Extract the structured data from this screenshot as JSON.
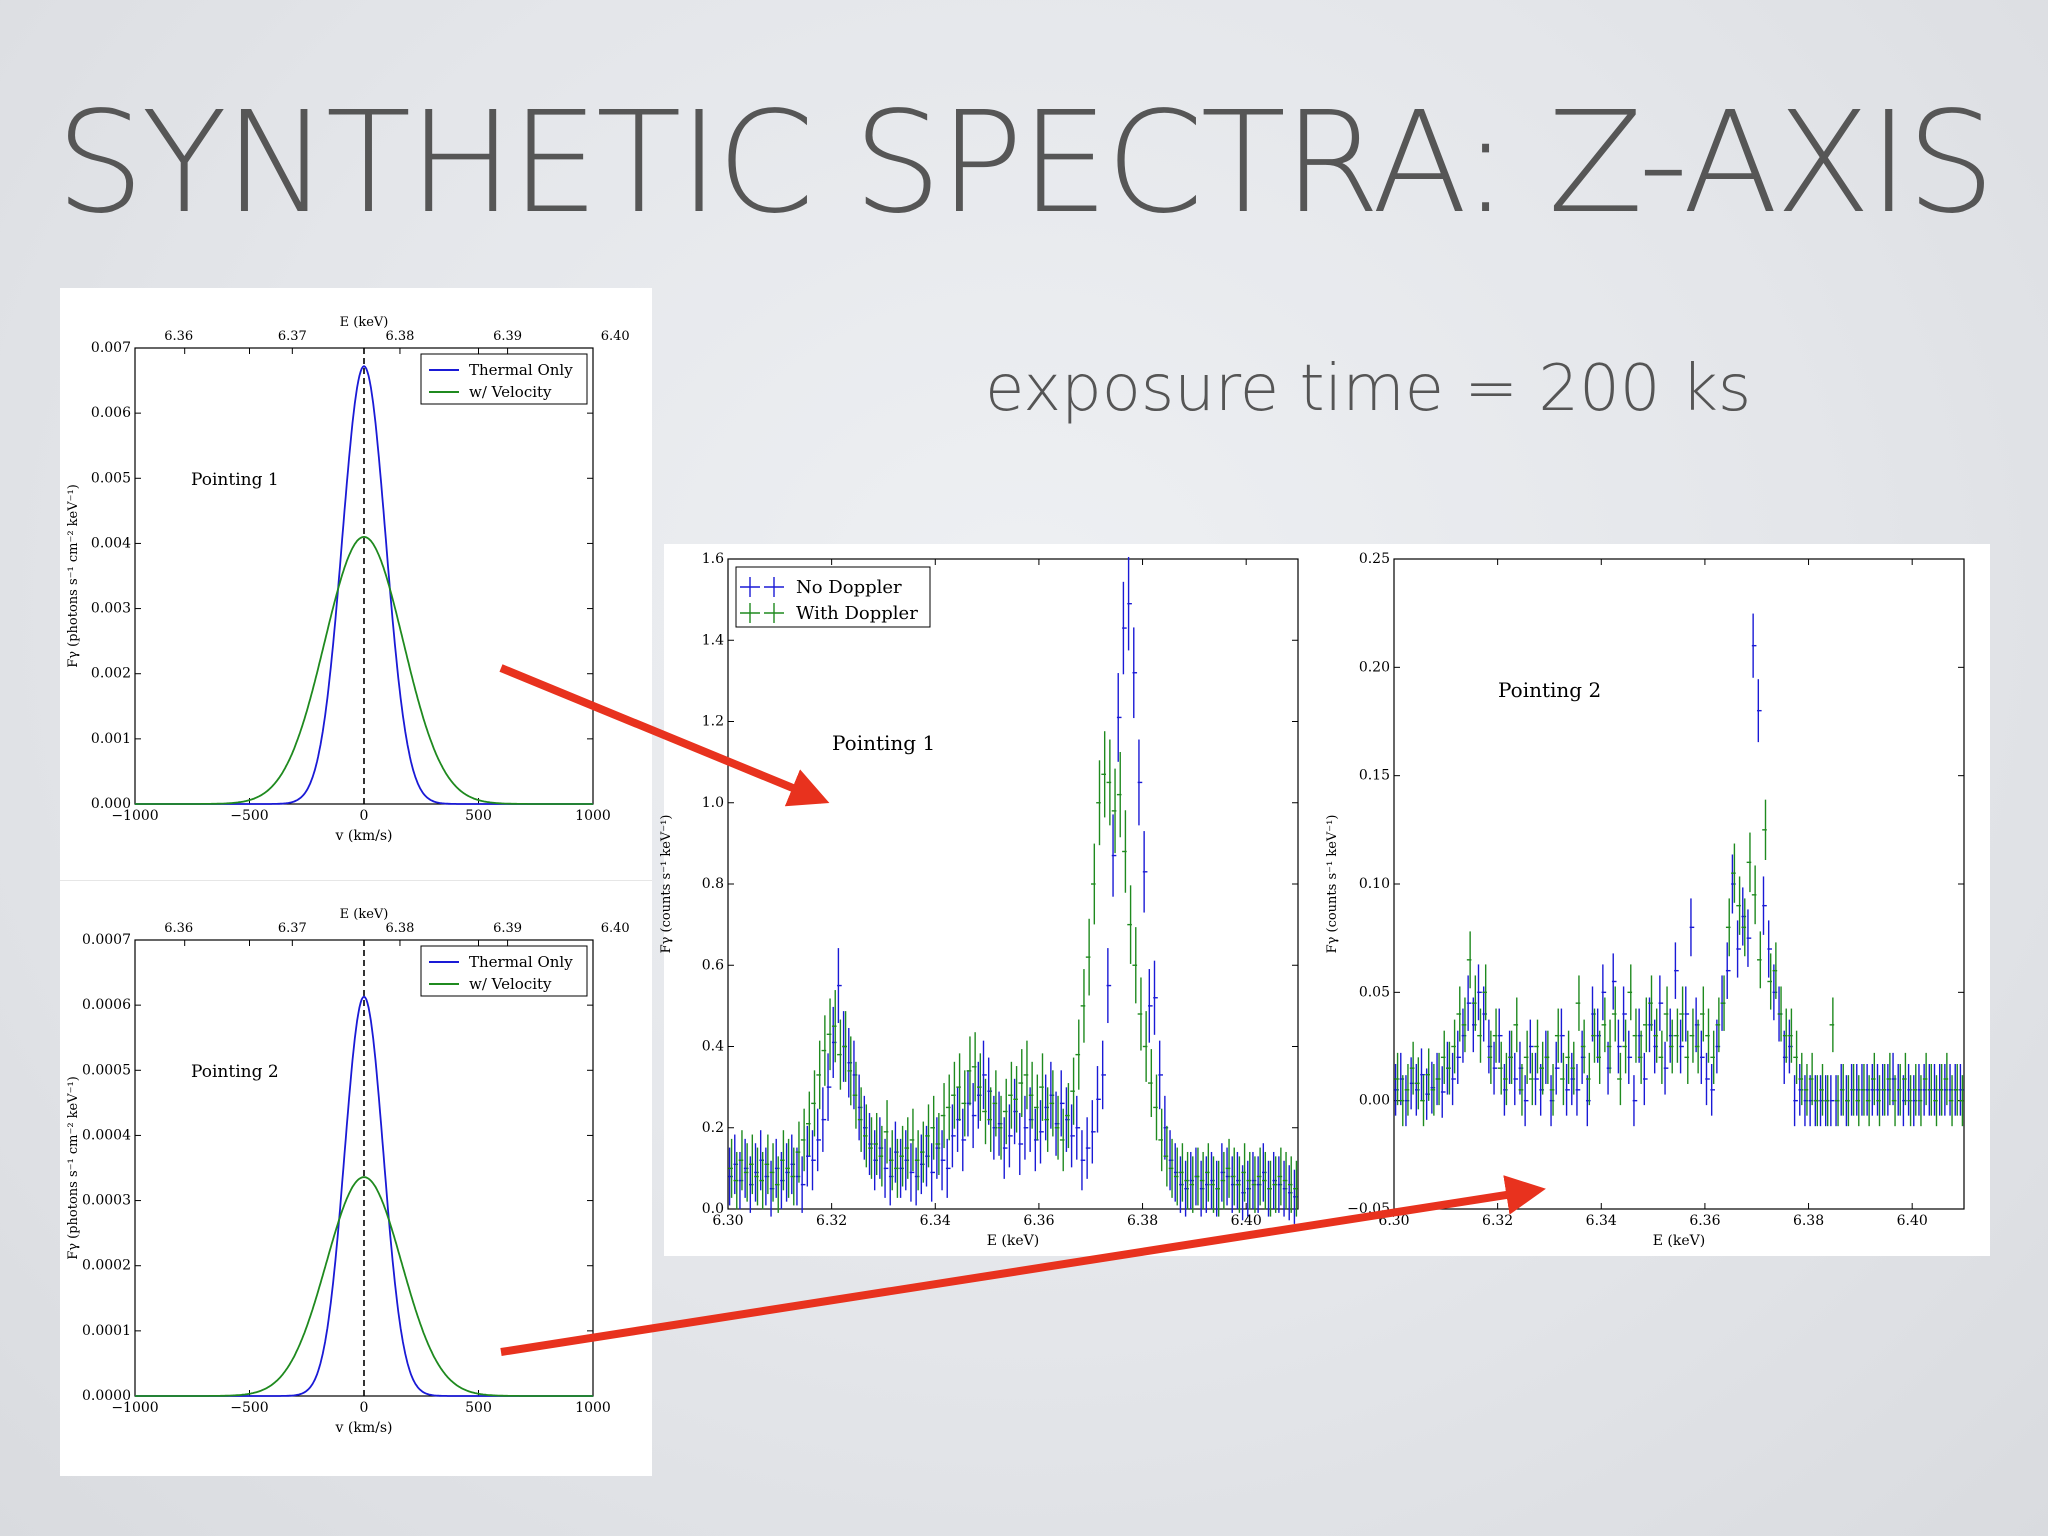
{
  "slide": {
    "title": "SYNTHETIC SPECTRA: Z-AXIS",
    "exposure_text": "exposure time = 200 ks",
    "arrow_color": "#e8321e"
  },
  "chart_data": [
    {
      "id": "p1-line",
      "type": "line",
      "annotation": "Pointing 1",
      "xlabel": "v (km/s)",
      "ylabel": "Fγ (photons s⁻¹ cm⁻² keV⁻¹)",
      "top_xlabel": "E (keV)",
      "xlim": [
        -1000,
        1000
      ],
      "ylim": [
        0,
        0.007
      ],
      "xticks": [
        -1000,
        -500,
        0,
        500,
        1000
      ],
      "xtick_labels": [
        "−1000",
        "−500",
        "0",
        "500",
        "1000"
      ],
      "yticks": [
        0,
        0.001,
        0.002,
        0.003,
        0.004,
        0.005,
        0.006,
        0.007
      ],
      "ytick_labels": [
        "0.000",
        "0.001",
        "0.002",
        "0.003",
        "0.004",
        "0.005",
        "0.006",
        "0.007"
      ],
      "top_ticks": [
        -783,
        -313,
        157,
        627,
        1097
      ],
      "top_tick_labels": [
        "6.36",
        "6.37",
        "6.38",
        "6.39",
        "6.40"
      ],
      "grid": false,
      "legend": "top-right",
      "vline_x": 0,
      "series": [
        {
          "name": "Thermal Only",
          "color": "#1a1ad6",
          "peak": 0.00672,
          "sigma": 95
        },
        {
          "name": "w/ Velocity",
          "color": "#1f8a1f",
          "peak": 0.0041,
          "sigma": 172
        }
      ]
    },
    {
      "id": "p2-line",
      "type": "line",
      "annotation": "Pointing 2",
      "xlabel": "v (km/s)",
      "ylabel": "Fγ (photons s⁻¹ cm⁻² keV⁻¹)",
      "top_xlabel": "E (keV)",
      "xlim": [
        -1000,
        1000
      ],
      "ylim": [
        0,
        0.0007
      ],
      "xticks": [
        -1000,
        -500,
        0,
        500,
        1000
      ],
      "xtick_labels": [
        "−1000",
        "−500",
        "0",
        "500",
        "1000"
      ],
      "yticks": [
        0,
        0.0001,
        0.0002,
        0.0003,
        0.0004,
        0.0005,
        0.0006,
        0.0007
      ],
      "ytick_labels": [
        "0.0000",
        "0.0001",
        "0.0002",
        "0.0003",
        "0.0004",
        "0.0005",
        "0.0006",
        "0.0007"
      ],
      "top_ticks": [
        -783,
        -313,
        157,
        627,
        1097
      ],
      "top_tick_labels": [
        "6.36",
        "6.37",
        "6.38",
        "6.39",
        "6.40"
      ],
      "grid": false,
      "legend": "top-right",
      "vline_x": 0,
      "series": [
        {
          "name": "Thermal Only",
          "color": "#1a1ad6",
          "peak": 0.000613,
          "sigma": 85
        },
        {
          "name": "w/ Velocity",
          "color": "#1f8a1f",
          "peak": 0.000336,
          "sigma": 165
        }
      ]
    },
    {
      "id": "p1-spec",
      "type": "scatter",
      "annotation": "Pointing 1",
      "xlabel": "E (keV)",
      "ylabel": "Fγ (counts s⁻¹ keV⁻¹)",
      "xlim": [
        6.3,
        6.41
      ],
      "ylim": [
        0,
        1.6
      ],
      "xticks": [
        6.3,
        6.32,
        6.34,
        6.36,
        6.38,
        6.4
      ],
      "xtick_labels": [
        "6.30",
        "6.32",
        "6.34",
        "6.36",
        "6.38",
        "6.40"
      ],
      "yticks": [
        0,
        0.2,
        0.4,
        0.6,
        0.8,
        1.0,
        1.2,
        1.4,
        1.6
      ],
      "ytick_labels": [
        "0.0",
        "0.2",
        "0.4",
        "0.6",
        "0.8",
        "1.0",
        "1.2",
        "1.4",
        "1.6"
      ],
      "grid": false,
      "legend": "top-left",
      "x_start": 6.3005,
      "x_step": 0.001,
      "series": [
        {
          "name": "No Doppler",
          "color": "#1a1ad6",
          "values": [
            0.08,
            0.11,
            0.07,
            0.1,
            0.06,
            0.09,
            0.12,
            0.08,
            0.05,
            0.1,
            0.07,
            0.09,
            0.11,
            0.08,
            0.06,
            0.13,
            0.12,
            0.17,
            0.22,
            0.3,
            0.41,
            0.55,
            0.4,
            0.36,
            0.33,
            0.25,
            0.2,
            0.16,
            0.12,
            0.15,
            0.1,
            0.08,
            0.14,
            0.1,
            0.12,
            0.09,
            0.08,
            0.11,
            0.13,
            0.09,
            0.15,
            0.12,
            0.1,
            0.18,
            0.22,
            0.17,
            0.26,
            0.23,
            0.28,
            0.33,
            0.29,
            0.2,
            0.21,
            0.15,
            0.18,
            0.24,
            0.16,
            0.2,
            0.22,
            0.17,
            0.19,
            0.25,
            0.28,
            0.21,
            0.26,
            0.22,
            0.18,
            0.2,
            0.12,
            0.15,
            0.19,
            0.27,
            0.33,
            0.55,
            0.87,
            1.21,
            1.43,
            1.49,
            1.32,
            1.05,
            0.83,
            0.5,
            0.52,
            0.33,
            0.2,
            0.12,
            0.09,
            0.06,
            0.05,
            0.07,
            0.08,
            0.05,
            0.06,
            0.07,
            0.05,
            0.09,
            0.08,
            0.06,
            0.07,
            0.04,
            0.05,
            0.07,
            0.06,
            0.09,
            0.05,
            0.07,
            0.06,
            0.05,
            0.04,
            0.03
          ]
        },
        {
          "name": "With Doppler",
          "color": "#1f8a1f",
          "values": [
            0.1,
            0.07,
            0.12,
            0.09,
            0.11,
            0.08,
            0.07,
            0.11,
            0.09,
            0.06,
            0.12,
            0.1,
            0.08,
            0.14,
            0.17,
            0.21,
            0.26,
            0.33,
            0.39,
            0.43,
            0.45,
            0.38,
            0.4,
            0.34,
            0.28,
            0.22,
            0.18,
            0.15,
            0.16,
            0.13,
            0.19,
            0.12,
            0.1,
            0.13,
            0.15,
            0.17,
            0.12,
            0.14,
            0.18,
            0.2,
            0.16,
            0.23,
            0.25,
            0.28,
            0.3,
            0.26,
            0.34,
            0.35,
            0.3,
            0.24,
            0.22,
            0.26,
            0.2,
            0.24,
            0.28,
            0.27,
            0.31,
            0.33,
            0.28,
            0.25,
            0.3,
            0.22,
            0.26,
            0.2,
            0.17,
            0.23,
            0.29,
            0.38,
            0.5,
            0.62,
            0.8,
            1.0,
            1.07,
            1.05,
            0.98,
            1.02,
            0.88,
            0.7,
            0.6,
            0.48,
            0.4,
            0.31,
            0.25,
            0.17,
            0.13,
            0.1,
            0.08,
            0.09,
            0.07,
            0.06,
            0.08,
            0.07,
            0.09,
            0.06,
            0.05,
            0.07,
            0.1,
            0.08,
            0.06,
            0.09,
            0.07,
            0.06,
            0.08,
            0.07,
            0.05,
            0.06,
            0.08,
            0.07,
            0.06,
            0.05
          ]
        }
      ]
    },
    {
      "id": "p2-spec",
      "type": "scatter",
      "annotation": "Pointing 2",
      "xlabel": "E (keV)",
      "ylabel": "Fγ (counts s⁻¹ keV⁻¹)",
      "xlim": [
        6.3,
        6.41
      ],
      "ylim": [
        -0.05,
        0.25
      ],
      "xticks": [
        6.3,
        6.32,
        6.34,
        6.36,
        6.38,
        6.4
      ],
      "xtick_labels": [
        "6.30",
        "6.32",
        "6.34",
        "6.36",
        "6.38",
        "6.40"
      ],
      "yticks": [
        -0.05,
        0,
        0.05,
        0.1,
        0.15,
        0.2,
        0.25
      ],
      "ytick_labels": [
        "−0.05",
        "0.00",
        "0.05",
        "0.10",
        "0.15",
        "0.20",
        "0.25"
      ],
      "grid": false,
      "x_start": 6.3005,
      "x_step": 0.001,
      "series": [
        {
          "name": "",
          "color": "#1a1ad6",
          "values": [
            0.005,
            0.01,
            0.0,
            0.008,
            0.005,
            0.012,
            0.003,
            0.006,
            0.01,
            0.004,
            0.015,
            0.01,
            0.02,
            0.03,
            0.045,
            0.035,
            0.05,
            0.04,
            0.025,
            0.015,
            0.03,
            0.005,
            0.02,
            0.01,
            0.015,
            0.0,
            0.025,
            0.01,
            0.005,
            0.02,
            0.0,
            0.015,
            0.03,
            0.005,
            0.01,
            0.005,
            0.02,
            0.0,
            0.04,
            0.03,
            0.05,
            0.015,
            0.055,
            0.025,
            0.04,
            0.02,
            0.0,
            0.03,
            0.01,
            0.035,
            0.025,
            0.045,
            0.015,
            0.03,
            0.06,
            0.025,
            0.04,
            0.08,
            0.035,
            0.02,
            0.01,
            0.005,
            0.025,
            0.045,
            0.06,
            0.1,
            0.07,
            0.085,
            0.075,
            0.21,
            0.18,
            0.09,
            0.07,
            0.05,
            0.04,
            0.02,
            0.025,
            0.0,
            0.005,
            0.0,
            0.0,
            0.0,
            0.0,
            0.0,
            0.0,
            0.0,
            0.005,
            0.0,
            0.005,
            0.005,
            0.005,
            0.005,
            0.005,
            0.005,
            0.005,
            0.005,
            0.01,
            0.005,
            0.0,
            0.005,
            0.0,
            0.005,
            0.005,
            0.005,
            0.005,
            0.005,
            0.005,
            0.005,
            0.005,
            0.005
          ]
        },
        {
          "name": "",
          "color": "#1f8a1f",
          "values": [
            0.01,
            0.0,
            0.005,
            0.015,
            0.008,
            0.0,
            0.012,
            0.005,
            0.01,
            0.02,
            0.015,
            0.025,
            0.04,
            0.035,
            0.065,
            0.045,
            0.03,
            0.05,
            0.02,
            0.03,
            0.015,
            0.01,
            0.02,
            0.035,
            0.005,
            0.02,
            0.01,
            0.025,
            0.015,
            0.02,
            0.005,
            0.03,
            0.01,
            0.02,
            0.015,
            0.045,
            0.025,
            0.01,
            0.03,
            0.02,
            0.035,
            0.025,
            0.04,
            0.01,
            0.025,
            0.05,
            0.03,
            0.02,
            0.035,
            0.045,
            0.03,
            0.02,
            0.04,
            0.025,
            0.03,
            0.04,
            0.02,
            0.03,
            0.025,
            0.04,
            0.03,
            0.02,
            0.035,
            0.045,
            0.08,
            0.105,
            0.09,
            0.08,
            0.11,
            0.095,
            0.065,
            0.125,
            0.055,
            0.06,
            0.04,
            0.03,
            0.03,
            0.02,
            0.01,
            0.005,
            0.01,
            0.0,
            0.005,
            0.0,
            0.035,
            0.0,
            0.005,
            0.0,
            0.005,
            0.0,
            0.005,
            0.0,
            0.01,
            0.0,
            0.005,
            0.01,
            0.0,
            0.005,
            0.01,
            0.0,
            0.005,
            0.0,
            0.01,
            0.005,
            0.0,
            0.005,
            0.01,
            0.0,
            0.005,
            0.0
          ]
        }
      ]
    }
  ]
}
